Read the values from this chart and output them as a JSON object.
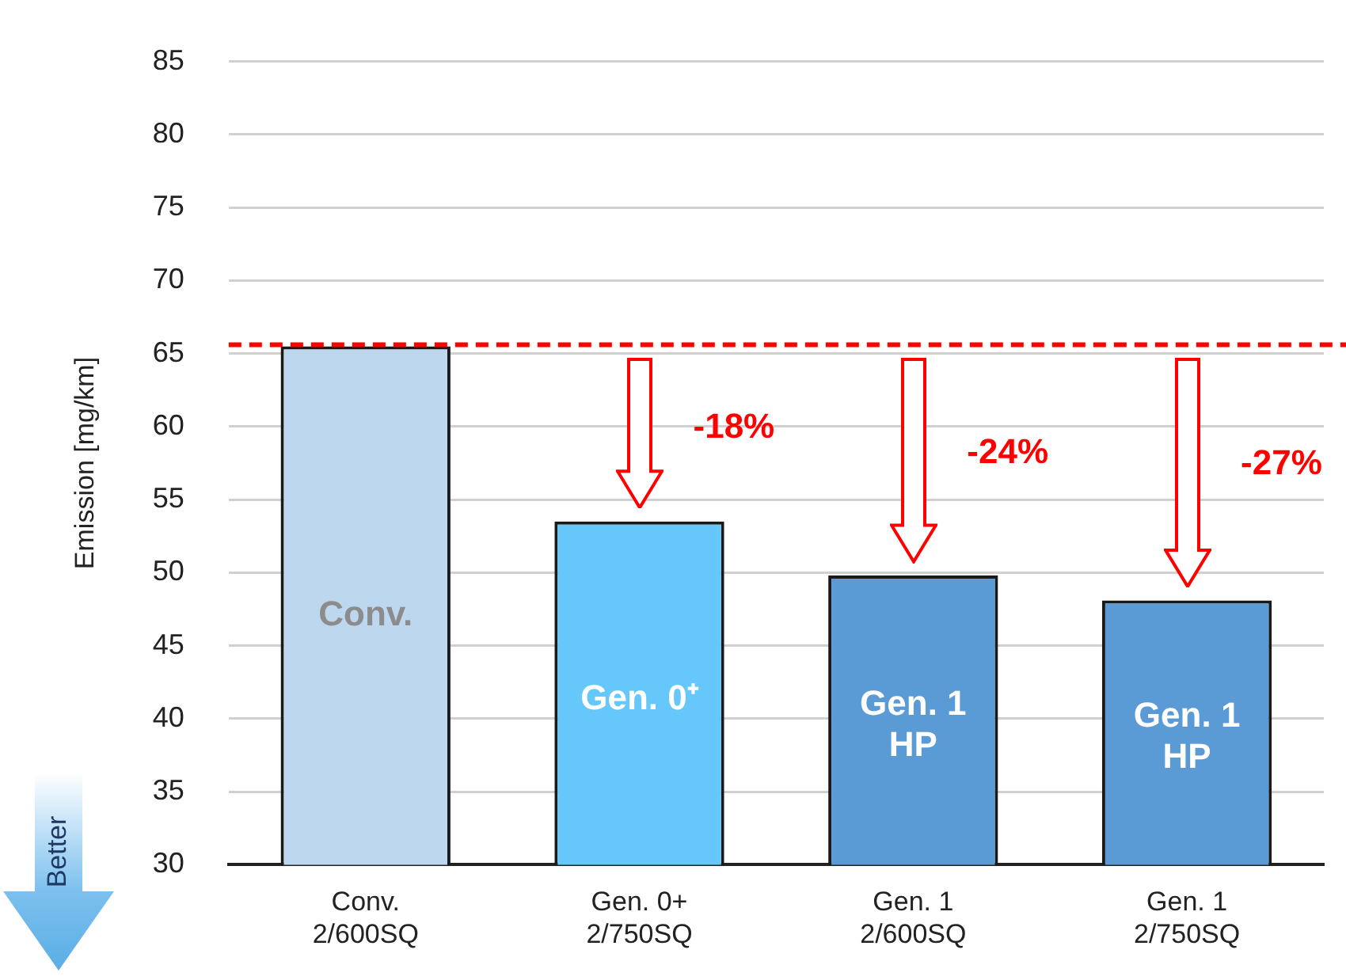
{
  "chart_data": {
    "type": "bar",
    "ylabel": "Emission [mg/km]",
    "categories": [
      "Conv.\n2/600SQ",
      "Gen. 0+\n2/750SQ",
      "Gen. 1\n2/600SQ",
      "Gen. 1\n2/750SQ"
    ],
    "values": [
      65.5,
      53.5,
      49.8,
      48.1
    ],
    "colors": [
      "#bdd7ee",
      "#66c8fa",
      "#5b9bd5",
      "#5b9bd5"
    ],
    "ylim": [
      30,
      85
    ],
    "yticks": [
      30,
      35,
      40,
      45,
      50,
      55,
      60,
      65,
      70,
      75,
      80,
      85
    ],
    "grid": "y",
    "legend": false,
    "ref_lines": [
      {
        "axis": "y",
        "value": 65.6,
        "color": "#ff0000",
        "line_style": "dashed"
      }
    ],
    "annotations": [
      "Conv.",
      "Gen. 0⁺",
      "Gen. 1\nHP",
      "Gen. 1\nHP",
      "-18%",
      "-24%",
      "-27%",
      "Better"
    ]
  }
}
